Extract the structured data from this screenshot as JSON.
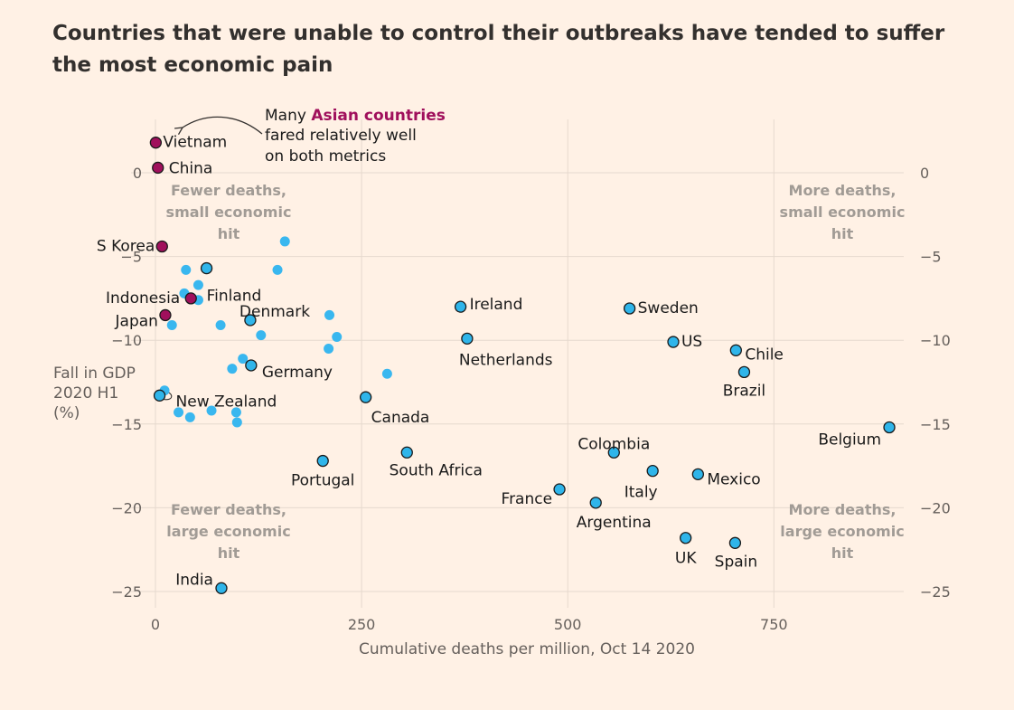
{
  "title": "Countries that were unable to control their outbreaks have tended to suffer the most economic pain",
  "colors": {
    "background": "#fff1e5",
    "asian": "#a0105c",
    "labelled": "#2fb5ea",
    "other": "#39b7ef",
    "grid": "#e6d9ce"
  },
  "annotation": {
    "line1_pre": "Many ",
    "line1_highlight": "Asian countries",
    "line2": "fared relatively well",
    "line3": "on both metrics"
  },
  "quadrants": {
    "top_left": [
      "Fewer deaths,",
      "small economic",
      "hit"
    ],
    "top_right": [
      "More deaths,",
      "small economic",
      "hit"
    ],
    "bottom_left": [
      "Fewer deaths,",
      "large economic",
      "hit"
    ],
    "bottom_right": [
      "More deaths,",
      "large economic",
      "hit"
    ]
  },
  "chart_data": {
    "type": "scatter",
    "title": "Countries that were unable to control their outbreaks have tended to suffer the most economic pain",
    "xlabel": "Cumulative deaths per million, Oct 14 2020",
    "ylabel": [
      "Fall in GDP",
      "2020 H1",
      "(%)"
    ],
    "xlim": [
      0,
      900
    ],
    "ylim": [
      -26,
      3
    ],
    "xticks": [
      0,
      250,
      500,
      750
    ],
    "xtick_labels": [
      "0",
      "250",
      "500",
      "750"
    ],
    "yticks": [
      0,
      -5,
      -10,
      -15,
      -20,
      -25
    ],
    "ytick_labels": [
      "0",
      "−5",
      "−10",
      "−15",
      "−20",
      "−25"
    ],
    "grid": true,
    "labelled_points": [
      {
        "label": "Vietnam",
        "x": 0.4,
        "y": 1.8,
        "group": "asian"
      },
      {
        "label": "China",
        "x": 3,
        "y": 0.3,
        "group": "asian"
      },
      {
        "label": "S Korea",
        "x": 8,
        "y": -4.4,
        "group": "asian"
      },
      {
        "label": "Indonesia",
        "x": 43,
        "y": -7.5,
        "group": "asian"
      },
      {
        "label": "Japan",
        "x": 12,
        "y": -8.5,
        "group": "asian"
      },
      {
        "label": "Finland",
        "x": 62,
        "y": -5.7,
        "group": "labelled"
      },
      {
        "label": "Denmark",
        "x": 115,
        "y": -8.8,
        "group": "labelled"
      },
      {
        "label": "Germany",
        "x": 116,
        "y": -11.5,
        "group": "labelled"
      },
      {
        "label": "New Zealand",
        "x": 5,
        "y": -13.3,
        "group": "labelled"
      },
      {
        "label": "Ireland",
        "x": 370,
        "y": -8.0,
        "group": "labelled"
      },
      {
        "label": "Netherlands",
        "x": 378,
        "y": -9.9,
        "group": "labelled"
      },
      {
        "label": "Sweden",
        "x": 575,
        "y": -8.1,
        "group": "labelled"
      },
      {
        "label": "US",
        "x": 628,
        "y": -10.1,
        "group": "labelled"
      },
      {
        "label": "Chile",
        "x": 704,
        "y": -10.6,
        "group": "labelled"
      },
      {
        "label": "Brazil",
        "x": 714,
        "y": -11.9,
        "group": "labelled"
      },
      {
        "label": "Canada",
        "x": 255,
        "y": -13.4,
        "group": "labelled"
      },
      {
        "label": "Belgium",
        "x": 890,
        "y": -15.2,
        "group": "labelled"
      },
      {
        "label": "Portugal",
        "x": 203,
        "y": -17.2,
        "group": "labelled"
      },
      {
        "label": "South Africa",
        "x": 305,
        "y": -16.7,
        "group": "labelled"
      },
      {
        "label": "Colombia",
        "x": 556,
        "y": -16.7,
        "group": "labelled"
      },
      {
        "label": "Italy",
        "x": 603,
        "y": -17.8,
        "group": "labelled"
      },
      {
        "label": "Mexico",
        "x": 658,
        "y": -18.0,
        "group": "labelled"
      },
      {
        "label": "France",
        "x": 490,
        "y": -18.9,
        "group": "labelled"
      },
      {
        "label": "Argentina",
        "x": 534,
        "y": -19.7,
        "group": "labelled"
      },
      {
        "label": "UK",
        "x": 643,
        "y": -21.8,
        "group": "labelled"
      },
      {
        "label": "Spain",
        "x": 703,
        "y": -22.1,
        "group": "labelled"
      },
      {
        "label": "India",
        "x": 80,
        "y": -24.8,
        "group": "labelled"
      }
    ],
    "unlabelled_points": [
      {
        "x": 157,
        "y": -4.1
      },
      {
        "x": 148,
        "y": -5.8
      },
      {
        "x": 37,
        "y": -5.8
      },
      {
        "x": 52,
        "y": -6.7
      },
      {
        "x": 35,
        "y": -7.2
      },
      {
        "x": 52,
        "y": -7.6
      },
      {
        "x": 20,
        "y": -9.1
      },
      {
        "x": 79,
        "y": -9.1
      },
      {
        "x": 128,
        "y": -9.7
      },
      {
        "x": 211,
        "y": -8.5
      },
      {
        "x": 220,
        "y": -9.8
      },
      {
        "x": 210,
        "y": -10.5
      },
      {
        "x": 106,
        "y": -11.1
      },
      {
        "x": 93,
        "y": -11.7
      },
      {
        "x": 281,
        "y": -12.0
      },
      {
        "x": 11,
        "y": -13.0
      },
      {
        "x": 28,
        "y": -14.3
      },
      {
        "x": 42,
        "y": -14.6
      },
      {
        "x": 68,
        "y": -14.2
      },
      {
        "x": 98,
        "y": -14.3
      },
      {
        "x": 99,
        "y": -14.9
      }
    ]
  }
}
